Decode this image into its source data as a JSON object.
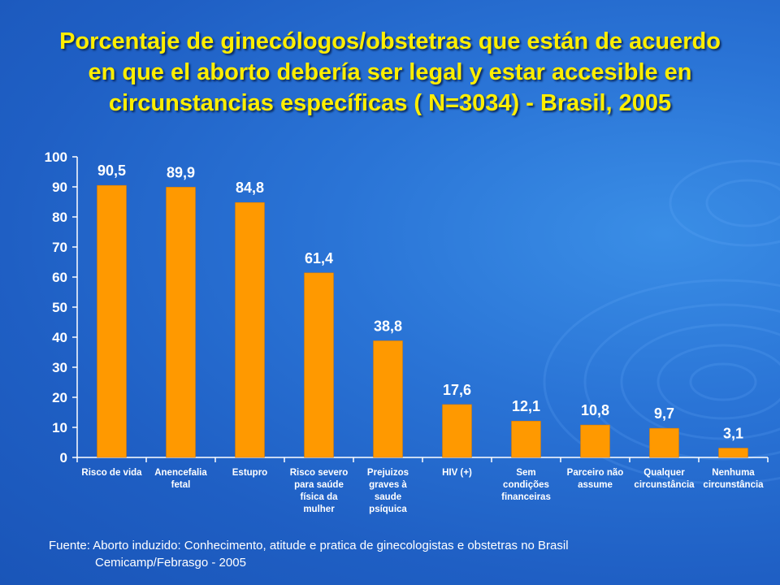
{
  "slide": {
    "title_lines": [
      "Porcentaje de ginecólogos/obstetras que están de acuerdo",
      "en que el aborto debería ser legal y estar accesible en",
      "circunstancias específicas ( N=3034) - Brasil, 2005"
    ],
    "source_lines": [
      "Fuente: Aborto induzido: Conhecimento, atitude e pratica de ginecologistas e obstetras no Brasil",
      "Cemicamp/Febrasgo - 2005"
    ]
  },
  "colors": {
    "bar": "#ff9900",
    "axis_text": "#ffffff",
    "title": "#ffee00",
    "background": "#2a74d6"
  },
  "chart_data": {
    "type": "bar",
    "categories": [
      [
        "Risco de vida"
      ],
      [
        "Anencefalia",
        "fetal"
      ],
      [
        "Estupro"
      ],
      [
        "Risco severo",
        "para saúde",
        "física da",
        "mulher"
      ],
      [
        "Prejuizos",
        "graves à",
        "saude",
        "psíquica"
      ],
      [
        "HIV (+)"
      ],
      [
        "Sem",
        "condições",
        "financeiras"
      ],
      [
        "Parceiro não",
        "assume"
      ],
      [
        "Qualquer",
        "circunstância"
      ],
      [
        "Nenhuma",
        "circunstância"
      ]
    ],
    "values": [
      90.5,
      89.9,
      84.8,
      61.4,
      38.8,
      17.6,
      12.1,
      10.8,
      9.7,
      3.1
    ],
    "value_labels": [
      "90,5",
      "89,9",
      "84,8",
      "61,4",
      "38,8",
      "17,6",
      "12,1",
      "10,8",
      "9,7",
      "3,1"
    ],
    "yticks": [
      0,
      10,
      20,
      30,
      40,
      50,
      60,
      70,
      80,
      90,
      100
    ],
    "ylim": [
      0,
      100
    ],
    "grid": false,
    "legend": "none"
  }
}
